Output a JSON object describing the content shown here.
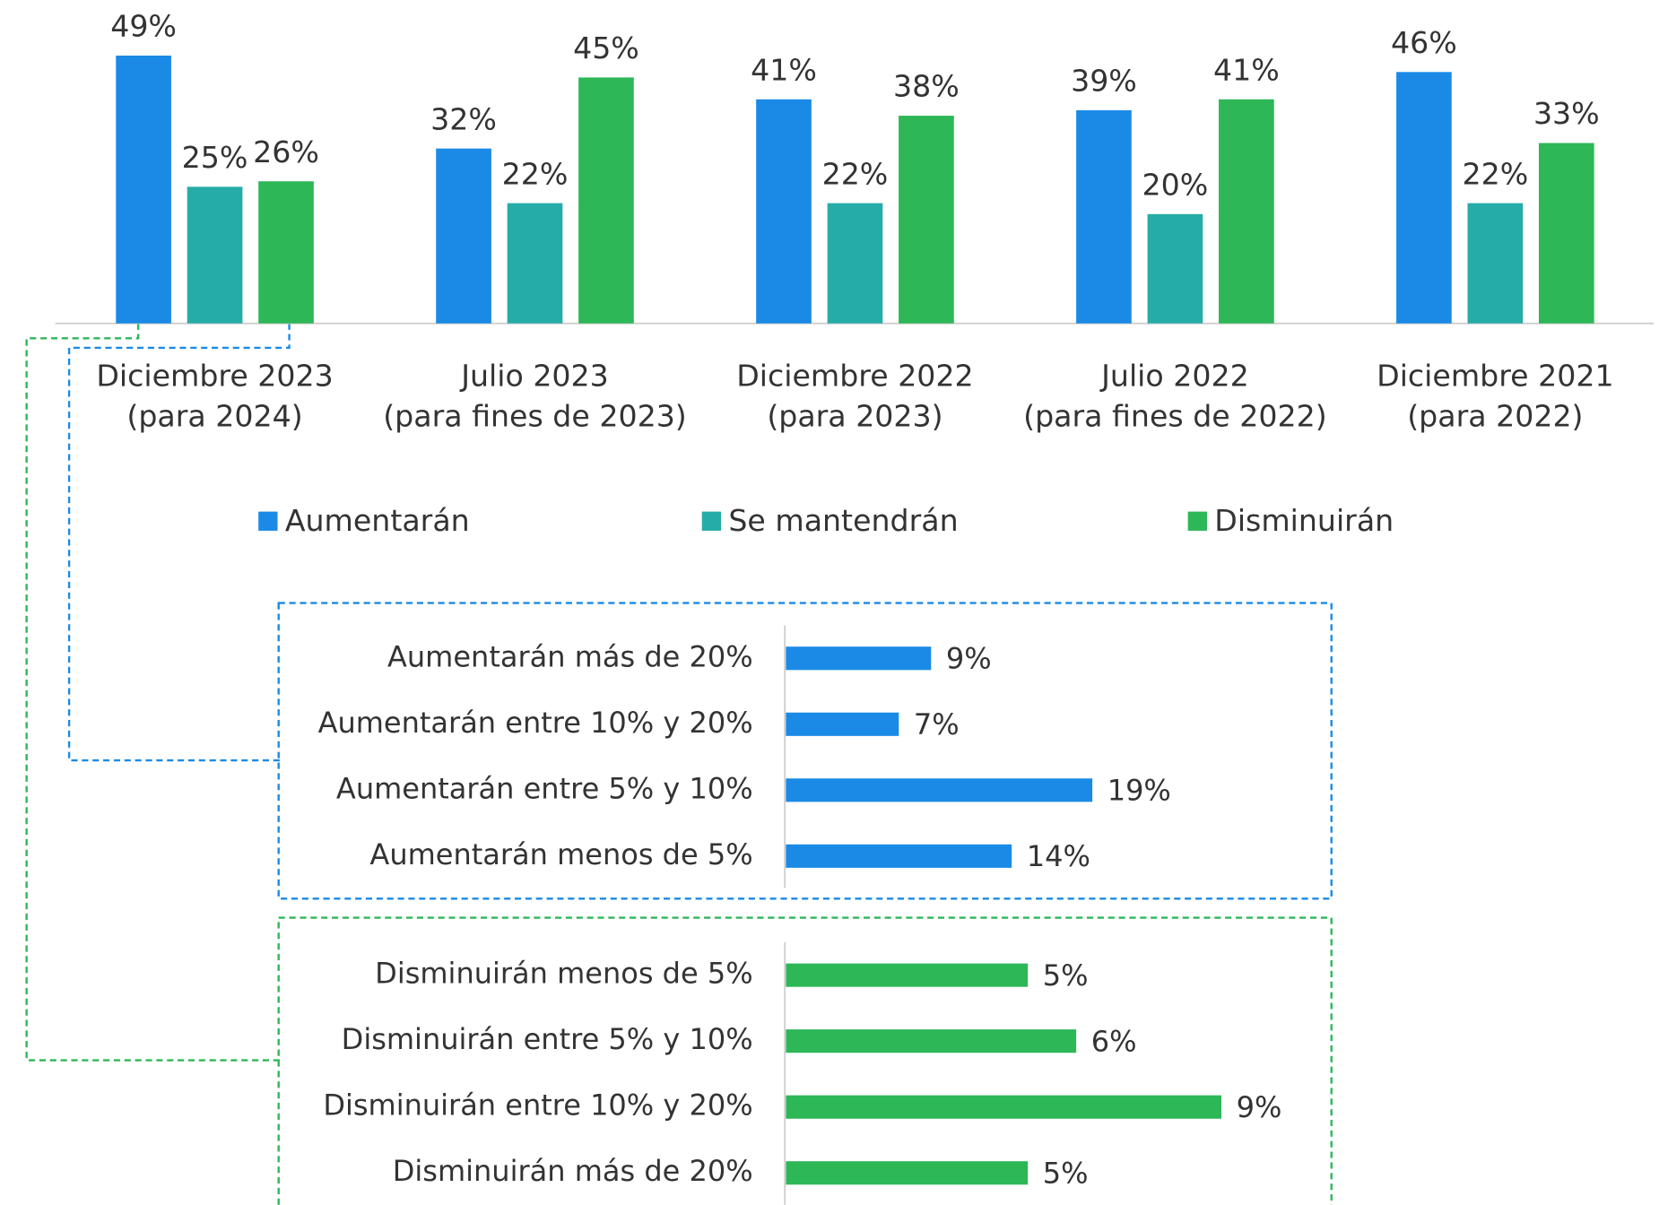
{
  "chart_data": [
    {
      "type": "bar",
      "categories": [
        [
          "Diciembre 2023",
          "(para 2024)"
        ],
        [
          "Julio 2023",
          "(para fines de 2023)"
        ],
        [
          "Diciembre 2022",
          "(para 2023)"
        ],
        [
          "Julio 2022",
          "(para fines de 2022)"
        ],
        [
          "Diciembre 2021",
          "(para 2022)"
        ]
      ],
      "series": [
        {
          "name": "Aumentarán",
          "color": "#1a8ae6",
          "values": [
            49,
            32,
            41,
            39,
            46
          ],
          "value_labels": [
            "49%",
            "32%",
            "41%",
            "39%",
            "46%"
          ]
        },
        {
          "name": "Se mantendrán",
          "color": "#26aca8",
          "values": [
            25,
            22,
            22,
            20,
            22
          ],
          "value_labels": [
            "25%",
            "22%",
            "22%",
            "20%",
            "22%"
          ]
        },
        {
          "name": "Disminuirán",
          "color": "#2db757",
          "values": [
            26,
            45,
            38,
            41,
            33
          ],
          "value_labels": [
            "26%",
            "45%",
            "38%",
            "41%",
            "33%"
          ]
        }
      ],
      "ylim": [
        0,
        50
      ]
    },
    {
      "type": "hbar",
      "color": "#1a8ae6",
      "categories": [
        "Aumentarán más de 20%",
        "Aumentarán entre 10% y 20%",
        "Aumentarán entre 5% y 10%",
        "Aumentarán menos de 5%"
      ],
      "values": [
        9,
        7,
        19,
        14
      ],
      "value_labels": [
        "9%",
        "7%",
        "19%",
        "14%"
      ],
      "xlim": [
        0,
        30
      ]
    },
    {
      "type": "hbar",
      "color": "#2db757",
      "categories": [
        "Disminuirán menos de 5%",
        "Disminuirán entre 5% y 10%",
        "Disminuirán entre 10% y 20%",
        "Disminuirán más de 20%"
      ],
      "values": [
        5,
        6,
        9,
        5
      ],
      "value_labels": [
        "5%",
        "6%",
        "9%",
        "5%"
      ],
      "xlim": [
        0,
        10
      ]
    }
  ]
}
